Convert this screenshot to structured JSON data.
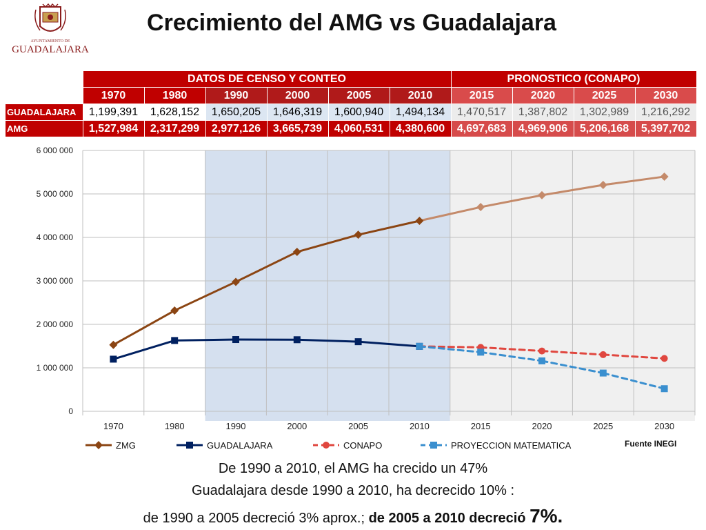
{
  "header": {
    "logo_text": "AYUNTAMIENTO DE",
    "logo_name": "GUADALAJARA",
    "title": "Crecimiento del AMG vs Guadalajara"
  },
  "table": {
    "group_census": "DATOS DE CENSO Y CONTEO",
    "group_forecast": "PRONOSTICO (CONAPO)",
    "years": [
      "1970",
      "1980",
      "1990",
      "2000",
      "2005",
      "2010",
      "2015",
      "2020",
      "2025",
      "2030"
    ],
    "rows": [
      {
        "label": "GUADALAJARA",
        "values": [
          "1,199,391",
          "1,628,152",
          "1,650,205",
          "1,646,319",
          "1,600,940",
          "1,494,134",
          "1,470,517",
          "1,387,802",
          "1,302,989",
          "1,216,292"
        ]
      },
      {
        "label": "AMG",
        "values": [
          "1,527,984",
          "2,317,299",
          "2,977,126",
          "3,665,739",
          "4,060,531",
          "4,380,600",
          "4,697,683",
          "4,969,906",
          "5,206,168",
          "5,397,702"
        ]
      }
    ]
  },
  "chart_data": {
    "type": "line",
    "x": [
      "1970",
      "1980",
      "1990",
      "2000",
      "2005",
      "2010",
      "2015",
      "2020",
      "2025",
      "2030"
    ],
    "ylim": [
      0,
      6000000
    ],
    "yticks": [
      "0",
      "1 000 000",
      "2 000 000",
      "3 000 000",
      "4 000 000",
      "5 000 000",
      "6 000 000"
    ],
    "grid": true,
    "shaded_regions": [
      {
        "from": "1990",
        "to": "2010",
        "color": "#d5e0ef"
      },
      {
        "from": "2010",
        "to": "2030",
        "color": "#f0f0f0"
      }
    ],
    "series": [
      {
        "name": "ZMG",
        "color": "#8b4513",
        "forecast_color": "#c48a6a",
        "marker": "diamond",
        "dash": false,
        "values": [
          1527984,
          2317299,
          2977126,
          3665739,
          4060531,
          4380600,
          4697683,
          4969906,
          5206168,
          5397702
        ]
      },
      {
        "name": "GUADALAJARA",
        "color": "#002060",
        "marker": "square",
        "dash": false,
        "values": [
          1199391,
          1628152,
          1650205,
          1646319,
          1600940,
          1494134,
          null,
          null,
          null,
          null
        ]
      },
      {
        "name": "CONAPO",
        "color": "#e0473f",
        "marker": "circle",
        "dash": true,
        "values": [
          null,
          null,
          null,
          null,
          null,
          1494134,
          1470517,
          1387802,
          1302989,
          1216292
        ]
      },
      {
        "name": "PROYECCION MATEMATICA",
        "color": "#3a8fcf",
        "marker": "square",
        "dash": true,
        "values": [
          null,
          null,
          null,
          null,
          null,
          1494134,
          1360000,
          1160000,
          880000,
          520000
        ]
      }
    ],
    "source": "Fuente INEGI"
  },
  "notes": {
    "line1": "De 1990 a 2010, el AMG ha crecido un 47%",
    "line2": "Guadalajara desde 1990 a 2010, ha decrecido  10% :",
    "line3_a": "de 1990 a 2005 decreció 3% aprox.; ",
    "line3_b": "de 2005 a 2010 decreció  ",
    "line3_c": "7%."
  }
}
